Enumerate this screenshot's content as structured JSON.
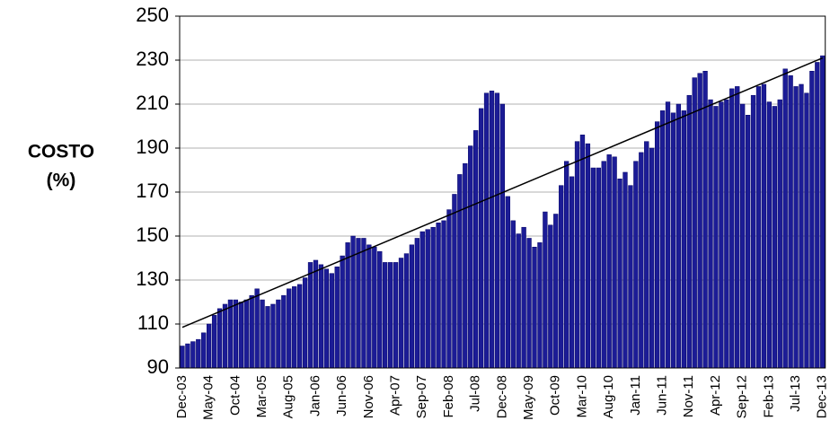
{
  "chart_data": {
    "type": "bar",
    "ylabel": [
      "COSTO",
      "(%)"
    ],
    "categories": [
      "Dec-03",
      null,
      null,
      null,
      null,
      "May-04",
      null,
      null,
      null,
      null,
      "Oct-04",
      null,
      null,
      null,
      null,
      "Mar-05",
      null,
      null,
      null,
      null,
      "Aug-05",
      null,
      null,
      null,
      null,
      "Jan-06",
      null,
      null,
      null,
      null,
      "Jun-06",
      null,
      null,
      null,
      null,
      "Nov-06",
      null,
      null,
      null,
      null,
      "Apr-07",
      null,
      null,
      null,
      null,
      "Sep-07",
      null,
      null,
      null,
      null,
      "Feb-08",
      null,
      null,
      null,
      null,
      "Jul-08",
      null,
      null,
      null,
      null,
      "Dec-08",
      null,
      null,
      null,
      null,
      "May-09",
      null,
      null,
      null,
      null,
      "Oct-09",
      null,
      null,
      null,
      null,
      "Mar-10",
      null,
      null,
      null,
      null,
      "Aug-10",
      null,
      null,
      null,
      null,
      "Jan-11",
      null,
      null,
      null,
      null,
      "Jun-11",
      null,
      null,
      null,
      null,
      "Nov-11",
      null,
      null,
      null,
      null,
      "Apr-12",
      null,
      null,
      null,
      null,
      "Sep-12",
      null,
      null,
      null,
      null,
      "Feb-13",
      null,
      null,
      null,
      null,
      "Jul-13",
      null,
      null,
      null,
      null,
      "Dec-13"
    ],
    "values": [
      100,
      101,
      102,
      103,
      106,
      110,
      114,
      117,
      119,
      121,
      121,
      120,
      121,
      123,
      126,
      121,
      118,
      119,
      121,
      123,
      126,
      127,
      128,
      131,
      138,
      139,
      137,
      135,
      133,
      136,
      141,
      147,
      150,
      149,
      149,
      146,
      145,
      143,
      138,
      138,
      138,
      140,
      142,
      146,
      149,
      152,
      153,
      154,
      156,
      157,
      162,
      169,
      178,
      183,
      191,
      198,
      208,
      215,
      216,
      215,
      210,
      168,
      157,
      151,
      154,
      149,
      145,
      147,
      161,
      155,
      160,
      173,
      184,
      177,
      193,
      196,
      192,
      181,
      181,
      184,
      187,
      186,
      176,
      179,
      173,
      184,
      188,
      193,
      190,
      202,
      207,
      211,
      206,
      210,
      207,
      214,
      222,
      224,
      225,
      212,
      209,
      211,
      212,
      217,
      218,
      210,
      205,
      214,
      218,
      219,
      211,
      209,
      212,
      226,
      223,
      218,
      219,
      215,
      225,
      229,
      232
    ],
    "color": "#1c1c96",
    "trendline": [
      108.5,
      231
    ],
    "ylim": [
      90,
      250
    ],
    "yticks": [
      90,
      110,
      130,
      150,
      170,
      190,
      210,
      230,
      250
    ],
    "grid": true
  }
}
